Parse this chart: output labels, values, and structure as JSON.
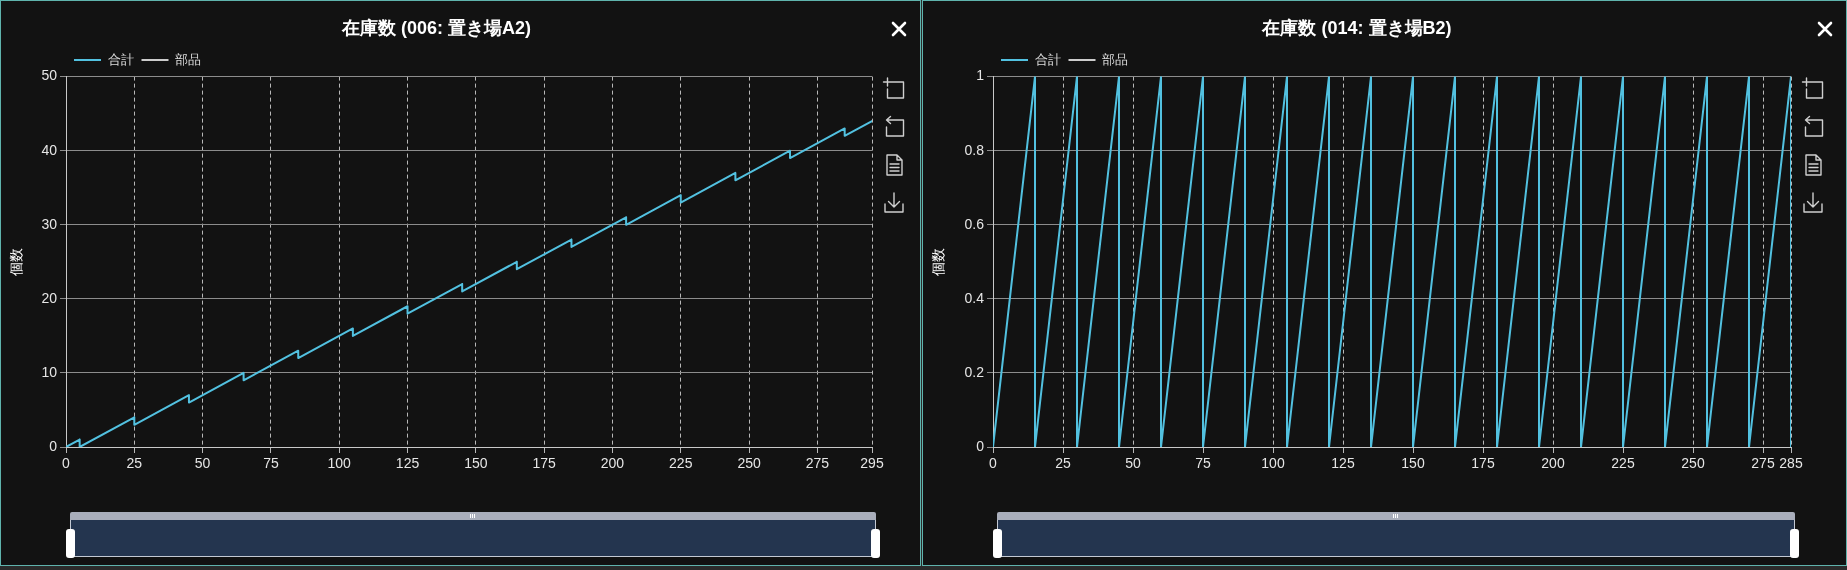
{
  "chart_data": [
    {
      "type": "line",
      "title": "在庫数 (006: 置き場A2)",
      "ylabel": "個数",
      "x": [
        0,
        5,
        5,
        25,
        25,
        45,
        45,
        65,
        65,
        85,
        85,
        105,
        105,
        125,
        125,
        145,
        145,
        165,
        165,
        185,
        185,
        205,
        205,
        225,
        225,
        245,
        245,
        265,
        265,
        285,
        285,
        295
      ],
      "series": [
        {
          "name": "合計",
          "color": "#52c1e0",
          "values": [
            0,
            1,
            0,
            4,
            3,
            7,
            6,
            10,
            9,
            13,
            12,
            16,
            15,
            19,
            18,
            22,
            21,
            25,
            24,
            28,
            27,
            31,
            30,
            34,
            33,
            37,
            36,
            40,
            39,
            43,
            42,
            44
          ]
        },
        {
          "name": "部品",
          "color": "#cccccc",
          "values": [
            null,
            null,
            null,
            null,
            null,
            null,
            null,
            null,
            null,
            null,
            null,
            null,
            null,
            null,
            null,
            null,
            null,
            null,
            null,
            null,
            null,
            null,
            null,
            null,
            null,
            null,
            null,
            null,
            null,
            null,
            null,
            null
          ]
        }
      ],
      "xlim": [
        0,
        295
      ],
      "xticks": [
        0,
        25,
        50,
        75,
        100,
        125,
        150,
        175,
        200,
        225,
        250,
        275,
        295
      ],
      "ylim": [
        0,
        50
      ],
      "yticks": [
        0,
        10,
        20,
        30,
        40,
        50
      ],
      "grid": true,
      "legend": "top left",
      "marker": "none"
    },
    {
      "type": "line",
      "title": "在庫数 (014: 置き場B2)",
      "ylabel": "個数",
      "x": [
        0,
        15,
        15,
        30,
        30,
        45,
        45,
        60,
        60,
        75,
        75,
        90,
        90,
        105,
        105,
        120,
        120,
        135,
        135,
        150,
        150,
        165,
        165,
        180,
        180,
        195,
        195,
        210,
        210,
        225,
        225,
        240,
        240,
        255,
        255,
        270,
        270,
        285,
        285
      ],
      "series": [
        {
          "name": "合計",
          "color": "#52c1e0",
          "values": [
            0,
            1,
            0,
            1,
            0,
            1,
            0,
            1,
            0,
            1,
            0,
            1,
            0,
            1,
            0,
            1,
            0,
            1,
            0,
            1,
            0,
            1,
            0,
            1,
            0,
            1,
            0,
            1,
            0,
            1,
            0,
            1,
            0,
            1,
            0,
            1,
            0,
            1,
            0
          ]
        },
        {
          "name": "部品",
          "color": "#cccccc",
          "values": [
            null,
            null,
            null,
            null,
            null,
            null,
            null,
            null,
            null,
            null,
            null,
            null,
            null,
            null,
            null,
            null,
            null,
            null,
            null,
            null,
            null,
            null,
            null,
            null,
            null,
            null,
            null,
            null,
            null,
            null,
            null,
            null,
            null,
            null,
            null,
            null,
            null,
            null,
            null
          ]
        }
      ],
      "xlim": [
        0,
        285
      ],
      "xticks": [
        0,
        25,
        50,
        75,
        100,
        125,
        150,
        175,
        200,
        225,
        250,
        275,
        285
      ],
      "ylim": [
        0,
        1
      ],
      "yticks": [
        0,
        0.2,
        0.4,
        0.6,
        0.8,
        1
      ],
      "grid": true,
      "legend": "top left",
      "marker": "none"
    }
  ]
}
